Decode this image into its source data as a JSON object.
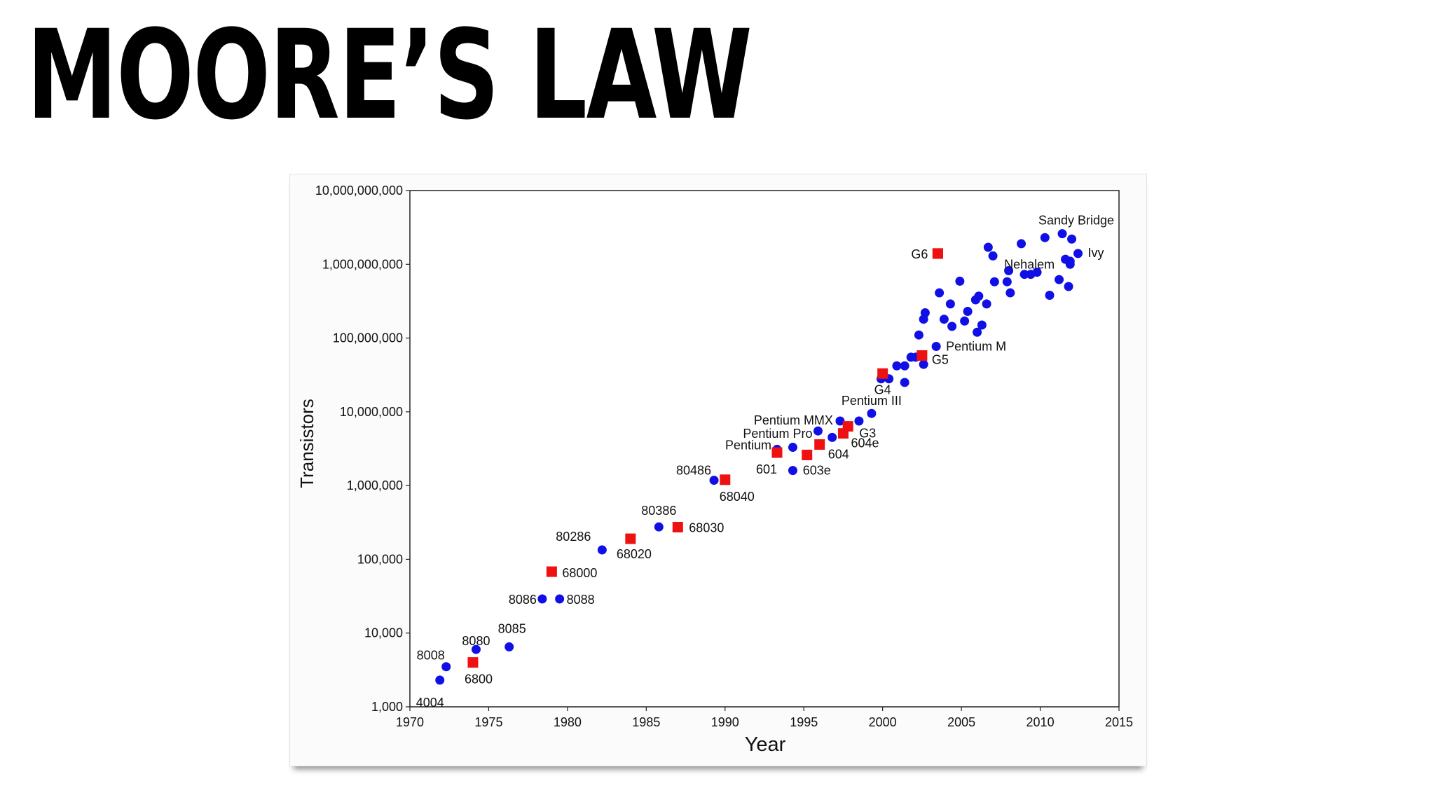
{
  "slide": {
    "title": "MOORE’S LAW"
  },
  "chart_data": {
    "type": "scatter",
    "xlabel": "Year",
    "ylabel": "Transistors",
    "x_range": [
      1970,
      2015
    ],
    "y_range": [
      1000,
      10000000000
    ],
    "y_scale": "log",
    "grid": "horizontal",
    "x_ticks": [
      "1970",
      "1975",
      "1980",
      "1985",
      "1990",
      "1995",
      "2000",
      "2005",
      "2010",
      "2015"
    ],
    "y_ticks": [
      "1,000",
      "10,000",
      "100,000",
      "1,000,000",
      "10,000,000",
      "100,000,000",
      "1,000,000,000",
      "10,000,000,000"
    ],
    "colors": {
      "blue_series": "#1010e6",
      "red_series": "#ee1111"
    },
    "series": [
      {
        "marker": "circle",
        "points": [
          {
            "x": 1971.9,
            "y": 2300,
            "label": "4004"
          },
          {
            "x": 1972.3,
            "y": 3500,
            "label": "8008"
          },
          {
            "x": 1974.2,
            "y": 6000,
            "label": "8080"
          },
          {
            "x": 1976.3,
            "y": 6500,
            "label": "8085"
          },
          {
            "x": 1978.4,
            "y": 29000,
            "label": "8086"
          },
          {
            "x": 1979.5,
            "y": 29000,
            "label": "8088"
          },
          {
            "x": 1982.2,
            "y": 134000,
            "label": "80286"
          },
          {
            "x": 1985.8,
            "y": 275000,
            "label": "80386"
          },
          {
            "x": 1989.3,
            "y": 1180000,
            "label": "80486"
          },
          {
            "x": 1993.3,
            "y": 3100000,
            "label": "Pentium"
          },
          {
            "x": 1995.9,
            "y": 5500000,
            "label": "Pentium Pro"
          },
          {
            "x": 1997.3,
            "y": 7500000,
            "label": "Pentium MMX"
          },
          {
            "x": 1999.3,
            "y": 9500000,
            "label": "Pentium III"
          },
          {
            "x": 2003.4,
            "y": 77000000,
            "label": "Pentium M"
          },
          {
            "x": 2007.0,
            "y": 1300000000,
            "label": "Nehalem"
          },
          {
            "x": 2011.4,
            "y": 2600000000,
            "label": "Sandy Bridge"
          },
          {
            "x": 2012.4,
            "y": 1400000000,
            "label": "Ivy"
          },
          {
            "x": 1994.3,
            "y": 1600000,
            "label": ""
          },
          {
            "x": 1994.3,
            "y": 3300000,
            "label": ""
          },
          {
            "x": 1996.8,
            "y": 4500000,
            "label": ""
          },
          {
            "x": 1998.5,
            "y": 7500000,
            "label": ""
          },
          {
            "x": 1999.9,
            "y": 28000000,
            "label": ""
          },
          {
            "x": 2000.4,
            "y": 28000000,
            "label": ""
          },
          {
            "x": 2000.9,
            "y": 42000000,
            "label": ""
          },
          {
            "x": 2001.4,
            "y": 42000000,
            "label": ""
          },
          {
            "x": 2001.4,
            "y": 25000000,
            "label": ""
          },
          {
            "x": 2001.8,
            "y": 55000000,
            "label": ""
          },
          {
            "x": 2002.1,
            "y": 55000000,
            "label": ""
          },
          {
            "x": 2002.6,
            "y": 44000000,
            "label": ""
          },
          {
            "x": 2002.3,
            "y": 110000000,
            "label": ""
          },
          {
            "x": 2002.6,
            "y": 180000000,
            "label": ""
          },
          {
            "x": 2002.7,
            "y": 220000000,
            "label": ""
          },
          {
            "x": 2003.6,
            "y": 410000000,
            "label": ""
          },
          {
            "x": 2003.9,
            "y": 180000000,
            "label": ""
          },
          {
            "x": 2004.3,
            "y": 290000000,
            "label": ""
          },
          {
            "x": 2004.4,
            "y": 144000000,
            "label": ""
          },
          {
            "x": 2004.9,
            "y": 590000000,
            "label": ""
          },
          {
            "x": 2005.2,
            "y": 170000000,
            "label": ""
          },
          {
            "x": 2005.4,
            "y": 230000000,
            "label": ""
          },
          {
            "x": 2005.9,
            "y": 330000000,
            "label": ""
          },
          {
            "x": 2006.1,
            "y": 370000000,
            "label": ""
          },
          {
            "x": 2006.0,
            "y": 120000000,
            "label": ""
          },
          {
            "x": 2006.3,
            "y": 150000000,
            "label": ""
          },
          {
            "x": 2006.6,
            "y": 290000000,
            "label": ""
          },
          {
            "x": 2006.7,
            "y": 1700000000,
            "label": ""
          },
          {
            "x": 2007.1,
            "y": 580000000,
            "label": ""
          },
          {
            "x": 2007.9,
            "y": 580000000,
            "label": ""
          },
          {
            "x": 2008.0,
            "y": 820000000,
            "label": ""
          },
          {
            "x": 2008.1,
            "y": 410000000,
            "label": ""
          },
          {
            "x": 2008.8,
            "y": 1900000000,
            "label": ""
          },
          {
            "x": 2009.0,
            "y": 730000000,
            "label": ""
          },
          {
            "x": 2009.4,
            "y": 730000000,
            "label": ""
          },
          {
            "x": 2009.8,
            "y": 780000000,
            "label": ""
          },
          {
            "x": 2010.3,
            "y": 2300000000,
            "label": ""
          },
          {
            "x": 2010.6,
            "y": 380000000,
            "label": ""
          },
          {
            "x": 2011.2,
            "y": 620000000,
            "label": ""
          },
          {
            "x": 2011.6,
            "y": 1170000000,
            "label": ""
          },
          {
            "x": 2011.9,
            "y": 1100000000,
            "label": ""
          },
          {
            "x": 2011.9,
            "y": 1000000000,
            "label": ""
          },
          {
            "x": 2011.8,
            "y": 500000000,
            "label": ""
          },
          {
            "x": 2012.0,
            "y": 2200000000,
            "label": ""
          }
        ]
      },
      {
        "marker": "square",
        "points": [
          {
            "x": 1974.0,
            "y": 4000,
            "label": "6800"
          },
          {
            "x": 1979.0,
            "y": 68000,
            "label": "68000"
          },
          {
            "x": 1984.0,
            "y": 190000,
            "label": "68020"
          },
          {
            "x": 1987.0,
            "y": 273000,
            "label": "68030"
          },
          {
            "x": 1990.0,
            "y": 1200000,
            "label": "68040"
          },
          {
            "x": 1993.3,
            "y": 2800000,
            "label": "601"
          },
          {
            "x": 1995.2,
            "y": 2600000,
            "label": "603e"
          },
          {
            "x": 1996.0,
            "y": 3600000,
            "label": "604"
          },
          {
            "x": 1997.5,
            "y": 5100000,
            "label": "604e"
          },
          {
            "x": 1997.8,
            "y": 6350000,
            "label": "G3"
          },
          {
            "x": 2000.0,
            "y": 33000000,
            "label": "G4"
          },
          {
            "x": 2002.5,
            "y": 58000000,
            "label": "G5"
          },
          {
            "x": 2003.5,
            "y": 1400000000,
            "label": "G6"
          },
          {
            "x": 2003.5,
            "y": 1400000000,
            "label": ""
          }
        ]
      }
    ]
  }
}
